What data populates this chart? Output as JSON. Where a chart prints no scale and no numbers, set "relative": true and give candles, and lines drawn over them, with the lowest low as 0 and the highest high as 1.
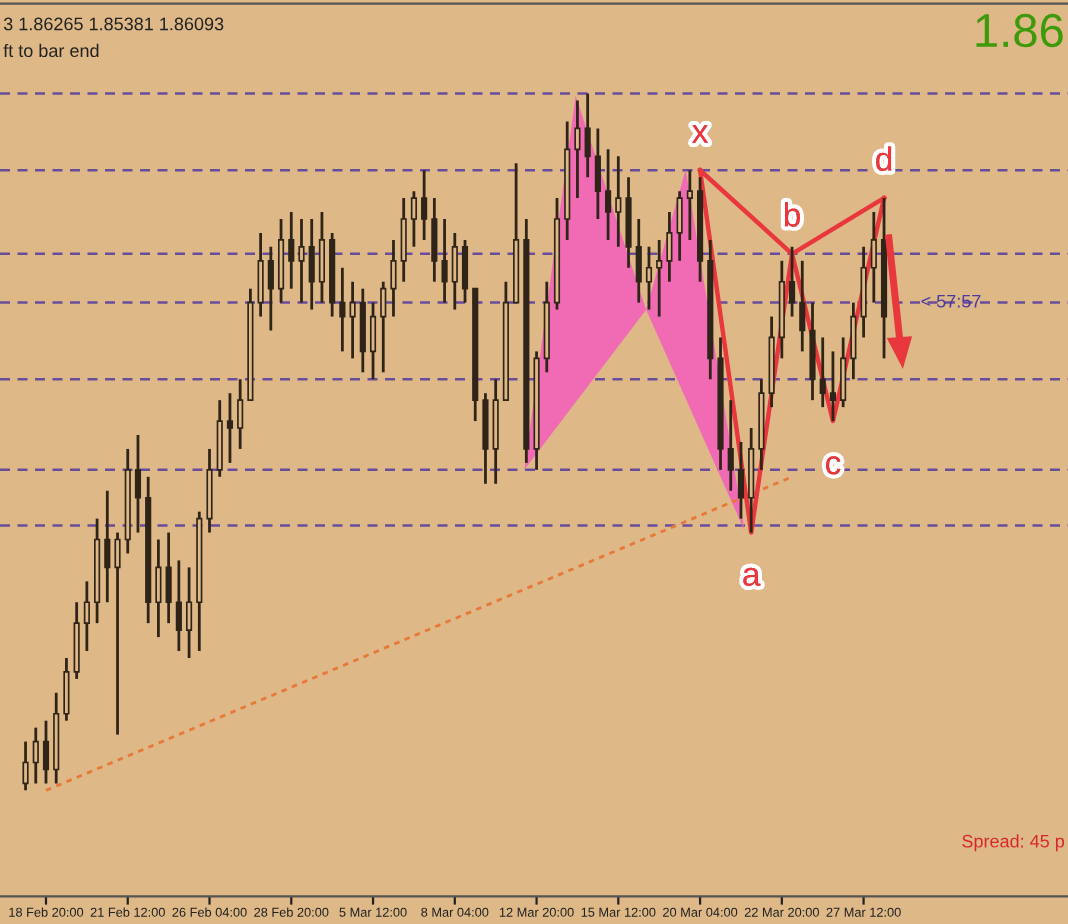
{
  "chart_data": {
    "type": "candlestick",
    "relative": true,
    "color": "#2e2418",
    "categories": [
      null,
      null,
      "18 Feb 20:00",
      null,
      null,
      null,
      null,
      null,
      null,
      null,
      "21 Feb 12:00",
      null,
      null,
      null,
      null,
      null,
      null,
      null,
      "26 Feb 04:00",
      null,
      null,
      null,
      null,
      null,
      null,
      null,
      "28 Feb 20:00",
      null,
      null,
      null,
      null,
      null,
      null,
      null,
      "5 Mar 12:00",
      null,
      null,
      null,
      null,
      null,
      null,
      null,
      "8 Mar 04:00",
      null,
      null,
      null,
      null,
      null,
      null,
      null,
      "12 Mar 20:00",
      null,
      null,
      null,
      null,
      null,
      null,
      null,
      "15 Mar 12:00",
      null,
      null,
      null,
      null,
      null,
      null,
      null,
      "20 Mar 04:00",
      null,
      null,
      null,
      null,
      null,
      null,
      null,
      "22 Mar 20:00",
      null,
      null,
      null,
      null,
      null,
      null,
      null,
      "27 Mar 12:00",
      null,
      null
    ],
    "ohlc": [
      [
        0.01,
        0.07,
        0,
        0.04
      ],
      [
        0.04,
        0.09,
        0.01,
        0.07
      ],
      [
        0.07,
        0.1,
        0.01,
        0.03
      ],
      [
        0.03,
        0.14,
        0.01,
        0.11
      ],
      [
        0.11,
        0.19,
        0.1,
        0.17
      ],
      [
        0.17,
        0.27,
        0.16,
        0.24
      ],
      [
        0.24,
        0.3,
        0.2,
        0.27
      ],
      [
        0.27,
        0.39,
        0.24,
        0.36
      ],
      [
        0.36,
        0.43,
        0.27,
        0.32
      ],
      [
        0.32,
        0.37,
        0.08,
        0.36
      ],
      [
        0.36,
        0.49,
        0.34,
        0.46
      ],
      [
        0.46,
        0.51,
        0.37,
        0.42
      ],
      [
        0.42,
        0.45,
        0.24,
        0.27
      ],
      [
        0.27,
        0.36,
        0.22,
        0.32
      ],
      [
        0.32,
        0.37,
        0.24,
        0.27
      ],
      [
        0.27,
        0.33,
        0.2,
        0.23
      ],
      [
        0.23,
        0.32,
        0.19,
        0.27
      ],
      [
        0.27,
        0.4,
        0.2,
        0.39
      ],
      [
        0.39,
        0.49,
        0.37,
        0.46
      ],
      [
        0.46,
        0.56,
        0.45,
        0.53
      ],
      [
        0.53,
        0.57,
        0.47,
        0.52
      ],
      [
        0.52,
        0.59,
        0.49,
        0.56
      ],
      [
        0.56,
        0.72,
        0.56,
        0.7
      ],
      [
        0.7,
        0.8,
        0.68,
        0.76
      ],
      [
        0.76,
        0.78,
        0.66,
        0.72
      ],
      [
        0.72,
        0.82,
        0.7,
        0.79
      ],
      [
        0.79,
        0.83,
        0.72,
        0.76
      ],
      [
        0.76,
        0.82,
        0.7,
        0.78
      ],
      [
        0.78,
        0.82,
        0.69,
        0.73
      ],
      [
        0.73,
        0.83,
        0.7,
        0.79
      ],
      [
        0.79,
        0.8,
        0.68,
        0.7
      ],
      [
        0.7,
        0.75,
        0.63,
        0.68
      ],
      [
        0.68,
        0.73,
        0.62,
        0.7
      ],
      [
        0.7,
        0.72,
        0.6,
        0.63
      ],
      [
        0.63,
        0.7,
        0.59,
        0.68
      ],
      [
        0.68,
        0.73,
        0.6,
        0.72
      ],
      [
        0.72,
        0.79,
        0.68,
        0.76
      ],
      [
        0.76,
        0.85,
        0.73,
        0.82
      ],
      [
        0.82,
        0.86,
        0.78,
        0.85
      ],
      [
        0.85,
        0.89,
        0.79,
        0.82
      ],
      [
        0.82,
        0.85,
        0.73,
        0.76
      ],
      [
        0.76,
        0.82,
        0.7,
        0.73
      ],
      [
        0.73,
        0.8,
        0.69,
        0.78
      ],
      [
        0.78,
        0.79,
        0.7,
        0.72
      ],
      [
        0.72,
        0.72,
        0.53,
        0.56
      ],
      [
        0.56,
        0.57,
        0.44,
        0.49
      ],
      [
        0.49,
        0.59,
        0.44,
        0.56
      ],
      [
        0.56,
        0.73,
        0.56,
        0.7
      ],
      [
        0.7,
        0.9,
        0.7,
        0.79
      ],
      [
        0.79,
        0.82,
        0.47,
        0.49
      ],
      [
        0.49,
        0.63,
        0.46,
        0.62
      ],
      [
        0.62,
        0.73,
        0.6,
        0.7
      ],
      [
        0.7,
        0.85,
        0.69,
        0.82
      ],
      [
        0.82,
        0.96,
        0.79,
        0.92
      ],
      [
        0.92,
        0.99,
        0.85,
        0.95
      ],
      [
        0.95,
        1.0,
        0.88,
        0.91
      ],
      [
        0.91,
        0.95,
        0.82,
        0.86
      ],
      [
        0.86,
        0.92,
        0.79,
        0.83
      ],
      [
        0.83,
        0.91,
        0.78,
        0.85
      ],
      [
        0.85,
        0.88,
        0.75,
        0.78
      ],
      [
        0.78,
        0.82,
        0.7,
        0.73
      ],
      [
        0.73,
        0.78,
        0.69,
        0.75
      ],
      [
        0.75,
        0.79,
        0.68,
        0.76
      ],
      [
        0.76,
        0.83,
        0.73,
        0.8
      ],
      [
        0.8,
        0.86,
        0.76,
        0.85
      ],
      [
        0.85,
        0.89,
        0.79,
        0.86
      ],
      [
        0.86,
        0.88,
        0.73,
        0.76
      ],
      [
        0.76,
        0.79,
        0.59,
        0.62
      ],
      [
        0.62,
        0.65,
        0.46,
        0.49
      ],
      [
        0.49,
        0.56,
        0.43,
        0.46
      ],
      [
        0.46,
        0.5,
        0.39,
        0.42
      ],
      [
        0.42,
        0.52,
        0.37,
        0.49
      ],
      [
        0.49,
        0.59,
        0.46,
        0.57
      ],
      [
        0.57,
        0.68,
        0.55,
        0.65
      ],
      [
        0.65,
        0.76,
        0.62,
        0.73
      ],
      [
        0.73,
        0.78,
        0.68,
        0.7
      ],
      [
        0.7,
        0.76,
        0.63,
        0.66
      ],
      [
        0.66,
        0.7,
        0.56,
        0.59
      ],
      [
        0.59,
        0.65,
        0.55,
        0.57
      ],
      [
        0.57,
        0.63,
        0.53,
        0.56
      ],
      [
        0.56,
        0.65,
        0.55,
        0.62
      ],
      [
        0.62,
        0.7,
        0.59,
        0.68
      ],
      [
        0.68,
        0.78,
        0.65,
        0.75
      ],
      [
        0.75,
        0.83,
        0.7,
        0.79
      ],
      [
        0.79,
        0.85,
        0.62,
        0.68
      ]
    ],
    "series": [
      {
        "type": "line",
        "color": "#e8773a",
        "line_style": "dotted",
        "values": [
          null,
          null,
          0.0,
          null,
          null,
          null,
          null,
          null,
          null,
          null,
          null,
          null,
          null,
          null,
          null,
          null,
          null,
          null,
          null,
          null,
          null,
          null,
          null,
          null,
          null,
          null,
          null,
          null,
          null,
          null,
          null,
          null,
          null,
          null,
          null,
          null,
          null,
          null,
          null,
          null,
          null,
          null,
          null,
          null,
          null,
          null,
          null,
          null,
          null,
          null,
          null,
          null,
          null,
          null,
          null,
          null,
          null,
          null,
          null,
          null,
          null,
          null,
          null,
          null,
          null,
          null,
          null,
          null,
          null,
          null,
          null,
          null,
          null,
          null,
          null,
          0.45,
          null,
          null,
          null,
          null,
          null,
          null,
          null,
          null,
          null
        ]
      },
      {
        "type": "line",
        "color": "#e8383d",
        "line_style": "solid",
        "values": [
          null,
          null,
          null,
          null,
          null,
          null,
          null,
          null,
          null,
          null,
          null,
          null,
          null,
          null,
          null,
          null,
          null,
          null,
          null,
          null,
          null,
          null,
          null,
          null,
          null,
          null,
          null,
          null,
          null,
          null,
          null,
          null,
          null,
          null,
          null,
          null,
          null,
          null,
          null,
          null,
          null,
          null,
          null,
          null,
          null,
          null,
          null,
          null,
          null,
          null,
          null,
          null,
          null,
          null,
          null,
          null,
          null,
          null,
          null,
          null,
          null,
          null,
          null,
          null,
          null,
          null,
          0.89,
          null,
          null,
          null,
          null,
          0.37,
          null,
          null,
          null,
          0.77,
          null,
          null,
          null,
          0.53,
          null,
          null,
          null,
          null,
          0.85
        ]
      },
      {
        "type": "line",
        "color": "#e8383d",
        "line_style": "solid",
        "values": [
          null,
          null,
          null,
          null,
          null,
          null,
          null,
          null,
          null,
          null,
          null,
          null,
          null,
          null,
          null,
          null,
          null,
          null,
          null,
          null,
          null,
          null,
          null,
          null,
          null,
          null,
          null,
          null,
          null,
          null,
          null,
          null,
          null,
          null,
          null,
          null,
          null,
          null,
          null,
          null,
          null,
          null,
          null,
          null,
          null,
          null,
          null,
          null,
          null,
          null,
          null,
          null,
          null,
          null,
          null,
          null,
          null,
          null,
          null,
          null,
          null,
          null,
          null,
          null,
          null,
          null,
          0.89,
          null,
          null,
          null,
          null,
          null,
          null,
          null,
          null,
          0.77,
          null,
          null,
          null,
          null,
          null,
          null,
          null,
          null,
          0.85
        ]
      }
    ],
    "ref_lines": [
      {
        "axis": "y",
        "value": 1.0,
        "color": "#6a4c9c",
        "line_style": "dashed"
      },
      {
        "axis": "y",
        "value": 0.89,
        "color": "#6a4c9c",
        "line_style": "dashed"
      },
      {
        "axis": "y",
        "value": 0.77,
        "color": "#6a4c9c",
        "line_style": "dashed"
      },
      {
        "axis": "y",
        "value": 0.7,
        "color": "#6a4c9c",
        "line_style": "dashed"
      },
      {
        "axis": "y",
        "value": 0.59,
        "color": "#6a4c9c",
        "line_style": "dashed"
      },
      {
        "axis": "y",
        "value": 0.46,
        "color": "#6a4c9c",
        "line_style": "dashed"
      },
      {
        "axis": "y",
        "value": 0.38,
        "color": "#6a4c9c",
        "line_style": "dashed"
      }
    ],
    "annotations": [
      "3 1.86265 1.85381 1.86093",
      "ft to bar end",
      "1.86",
      "< 57:57",
      "Spread: 45 p",
      "x",
      "a",
      "b",
      "c",
      "d"
    ]
  }
}
